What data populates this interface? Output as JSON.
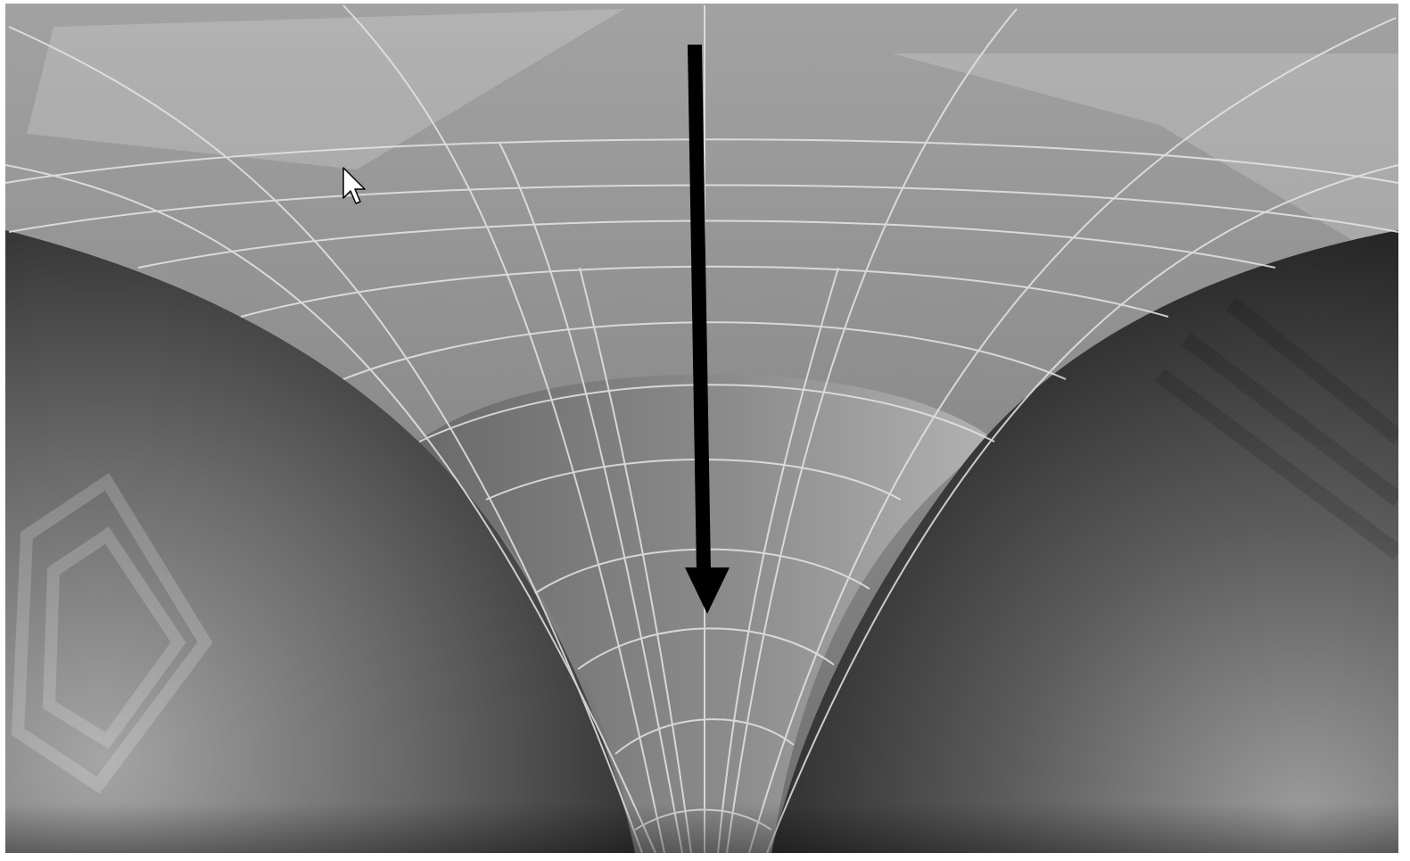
{
  "image": {
    "subject": "funnel-surface-render",
    "colors": {
      "background_frame": "#ffffff",
      "surface_top": "#9a9a9a",
      "surface_mid": "#7c7c7c",
      "funnel_light": "#a8a8a8",
      "sphere_dark": "#2e2e2e",
      "sphere_light": "#9a9a9a",
      "grid_line": "#e8e8e8",
      "arrow": "#000000"
    },
    "icons": {
      "cursor": "mouse-pointer-icon",
      "arrow": "down-arrow-icon"
    }
  }
}
